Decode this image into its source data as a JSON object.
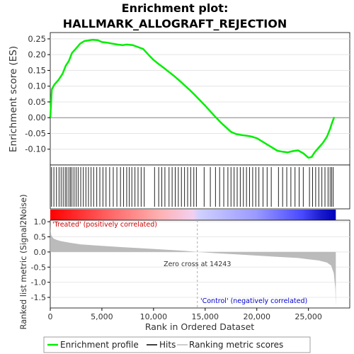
{
  "chart_data": {
    "type": "line",
    "title": "Enrichment plot:",
    "subtitle": "HALLMARK_ALLOGRAFT_REJECTION",
    "top_panel": {
      "ylabel": "Enrichment score (ES)",
      "ylim": [
        -0.15,
        0.27
      ],
      "yticks": [
        -0.1,
        -0.05,
        0.0,
        0.05,
        0.1,
        0.15,
        0.2,
        0.25
      ],
      "ytick_labels": [
        "-0.10",
        "-0.05",
        "0.00",
        "0.05",
        "0.10",
        "0.15",
        "0.20",
        "0.25"
      ],
      "grid": true,
      "series": [
        {
          "name": "Enrichment profile",
          "color": "#00ee00",
          "x": [
            0,
            150,
            400,
            800,
            1200,
            1500,
            1800,
            2100,
            2500,
            2900,
            3300,
            3700,
            4100,
            4600,
            5000,
            5500,
            6000,
            6500,
            7000,
            7400,
            8000,
            8500,
            9000,
            9500,
            10000,
            10500,
            11000,
            11500,
            12000,
            12500,
            13000,
            13500,
            14000,
            14500,
            15000,
            15500,
            16000,
            16500,
            17000,
            17500,
            18000,
            18500,
            19000,
            19500,
            20000,
            20500,
            21000,
            21500,
            22000,
            22500,
            23000,
            23500,
            24000,
            24500,
            25000,
            25300,
            25600,
            26000,
            26400,
            26800,
            27100,
            27300,
            27500
          ],
          "y": [
            0.0,
            0.09,
            0.105,
            0.12,
            0.14,
            0.165,
            0.18,
            0.205,
            0.22,
            0.235,
            0.243,
            0.245,
            0.247,
            0.246,
            0.24,
            0.238,
            0.235,
            0.232,
            0.23,
            0.232,
            0.23,
            0.224,
            0.218,
            0.2,
            0.183,
            0.17,
            0.158,
            0.145,
            0.132,
            0.118,
            0.103,
            0.088,
            0.072,
            0.055,
            0.038,
            0.02,
            0.002,
            -0.015,
            -0.03,
            -0.045,
            -0.052,
            -0.055,
            -0.057,
            -0.06,
            -0.065,
            -0.075,
            -0.085,
            -0.095,
            -0.105,
            -0.108,
            -0.11,
            -0.106,
            -0.104,
            -0.113,
            -0.127,
            -0.125,
            -0.11,
            -0.095,
            -0.08,
            -0.06,
            -0.035,
            -0.015,
            0.002
          ]
        }
      ]
    },
    "hits": [
      {
        "x": 120,
        "color": "#222"
      },
      {
        "x": 350,
        "color": "#222"
      },
      {
        "x": 600,
        "color": "#222"
      },
      {
        "x": 850,
        "color": "#222"
      },
      {
        "x": 1050,
        "color": "#222"
      },
      {
        "x": 1250,
        "color": "#222"
      },
      {
        "x": 1450,
        "color": "#222"
      },
      {
        "x": 1600,
        "color": "#222"
      },
      {
        "x": 1800,
        "color": "#222"
      },
      {
        "x": 1950,
        "color": "#222"
      },
      {
        "x": 2100,
        "color": "#222"
      },
      {
        "x": 2300,
        "color": "#222"
      },
      {
        "x": 2500,
        "color": "#222"
      },
      {
        "x": 2700,
        "color": "#222"
      },
      {
        "x": 2950,
        "color": "#222"
      },
      {
        "x": 3200,
        "color": "#222"
      },
      {
        "x": 3450,
        "color": "#222"
      },
      {
        "x": 3700,
        "color": "#222"
      },
      {
        "x": 3950,
        "color": "#222"
      },
      {
        "x": 4200,
        "color": "#222"
      },
      {
        "x": 4500,
        "color": "#222"
      },
      {
        "x": 4800,
        "color": "#222"
      },
      {
        "x": 5100,
        "color": "#222"
      },
      {
        "x": 5400,
        "color": "#222"
      },
      {
        "x": 5750,
        "color": "#222"
      },
      {
        "x": 6100,
        "color": "#222"
      },
      {
        "x": 6450,
        "color": "#222"
      },
      {
        "x": 6800,
        "color": "#222"
      },
      {
        "x": 7100,
        "color": "#222"
      },
      {
        "x": 7400,
        "color": "#222"
      },
      {
        "x": 7650,
        "color": "#222"
      },
      {
        "x": 7900,
        "color": "#222"
      },
      {
        "x": 8200,
        "color": "#222"
      },
      {
        "x": 8500,
        "color": "#222"
      },
      {
        "x": 8800,
        "color": "#222"
      },
      {
        "x": 9100,
        "color": "#222"
      },
      {
        "x": 10100,
        "color": "#222"
      },
      {
        "x": 10500,
        "color": "#222"
      },
      {
        "x": 10800,
        "color": "#222"
      },
      {
        "x": 11100,
        "color": "#222"
      },
      {
        "x": 11500,
        "color": "#222"
      },
      {
        "x": 11800,
        "color": "#222"
      },
      {
        "x": 12100,
        "color": "#222"
      },
      {
        "x": 12400,
        "color": "#222"
      },
      {
        "x": 12700,
        "color": "#222"
      },
      {
        "x": 13000,
        "color": "#222"
      },
      {
        "x": 13300,
        "color": "#222"
      },
      {
        "x": 13600,
        "color": "#222"
      },
      {
        "x": 13900,
        "color": "#222"
      },
      {
        "x": 14150,
        "color": "#222"
      },
      {
        "x": 14900,
        "color": "#222"
      },
      {
        "x": 15500,
        "color": "#222"
      },
      {
        "x": 16000,
        "color": "#222"
      },
      {
        "x": 16400,
        "color": "#222"
      },
      {
        "x": 16800,
        "color": "#222"
      },
      {
        "x": 17200,
        "color": "#222"
      },
      {
        "x": 17500,
        "color": "#222"
      },
      {
        "x": 17800,
        "color": "#222"
      },
      {
        "x": 18100,
        "color": "#222"
      },
      {
        "x": 18400,
        "color": "#222"
      },
      {
        "x": 18700,
        "color": "#222"
      },
      {
        "x": 19000,
        "color": "#222"
      },
      {
        "x": 19300,
        "color": "#222"
      },
      {
        "x": 19600,
        "color": "#222"
      },
      {
        "x": 19900,
        "color": "#222"
      },
      {
        "x": 20200,
        "color": "#222"
      },
      {
        "x": 20600,
        "color": "#222"
      },
      {
        "x": 21000,
        "color": "#222"
      },
      {
        "x": 21400,
        "color": "#222"
      },
      {
        "x": 22100,
        "color": "#222"
      },
      {
        "x": 22500,
        "color": "#222"
      },
      {
        "x": 22900,
        "color": "#222"
      },
      {
        "x": 23300,
        "color": "#222"
      },
      {
        "x": 23700,
        "color": "#222"
      },
      {
        "x": 24100,
        "color": "#222"
      },
      {
        "x": 24500,
        "color": "#222"
      },
      {
        "x": 25100,
        "color": "#222"
      },
      {
        "x": 25400,
        "color": "#222"
      },
      {
        "x": 25700,
        "color": "#222"
      },
      {
        "x": 26000,
        "color": "#222"
      },
      {
        "x": 26300,
        "color": "#222"
      },
      {
        "x": 26600,
        "color": "#222"
      },
      {
        "x": 26900,
        "color": "#222"
      },
      {
        "x": 27100,
        "color": "#222"
      },
      {
        "x": 27250,
        "color": "#222"
      },
      {
        "x": 27400,
        "color": "#222"
      }
    ],
    "bottom_panel": {
      "ylabel": "Ranked list metric (Signal2Noise)",
      "xlabel": "Rank in Ordered Dataset",
      "ylim": [
        -1.85,
        1.05
      ],
      "yticks": [
        -1.5,
        -1.0,
        -0.5,
        0.0,
        0.5,
        1.0
      ],
      "ytick_labels": [
        "-1.5",
        "-1.0",
        "-0.5",
        "0.0",
        "0.5",
        "1.0"
      ],
      "xlim": [
        0,
        29000
      ],
      "xticks": [
        0,
        5000,
        10000,
        15000,
        20000,
        25000
      ],
      "xtick_labels": [
        "0",
        "5,000",
        "10,000",
        "15,000",
        "20,000",
        "25,000"
      ],
      "metric_profile": {
        "x": [
          0,
          30,
          100,
          300,
          600,
          1000,
          2000,
          3000,
          5000,
          7000,
          9000,
          11000,
          13000,
          14243,
          16000,
          18000,
          20000,
          22000,
          24000,
          25000,
          26000,
          26800,
          27200,
          27450,
          27600,
          27650
        ],
        "y": [
          0.95,
          0.7,
          0.55,
          0.45,
          0.4,
          0.36,
          0.3,
          0.25,
          0.2,
          0.16,
          0.12,
          0.08,
          0.04,
          0.0,
          -0.04,
          -0.08,
          -0.12,
          -0.16,
          -0.2,
          -0.24,
          -0.28,
          -0.35,
          -0.45,
          -0.7,
          -1.2,
          -1.8
        ]
      },
      "zero_cross_label": "Zero cross at 14243",
      "zero_cross_x": 14243,
      "treated_label": "'Treated' (positively correlated)",
      "control_label": "'Control' (negatively correlated)"
    },
    "n_genes": 27650,
    "legend": {
      "placement": "bottom",
      "entries": [
        {
          "label": "Enrichment profile",
          "color": "#00ee00"
        },
        {
          "label": "Hits",
          "color": "#000000"
        },
        {
          "label": "Ranking metric scores",
          "color": "#bbbbbb"
        }
      ]
    }
  }
}
